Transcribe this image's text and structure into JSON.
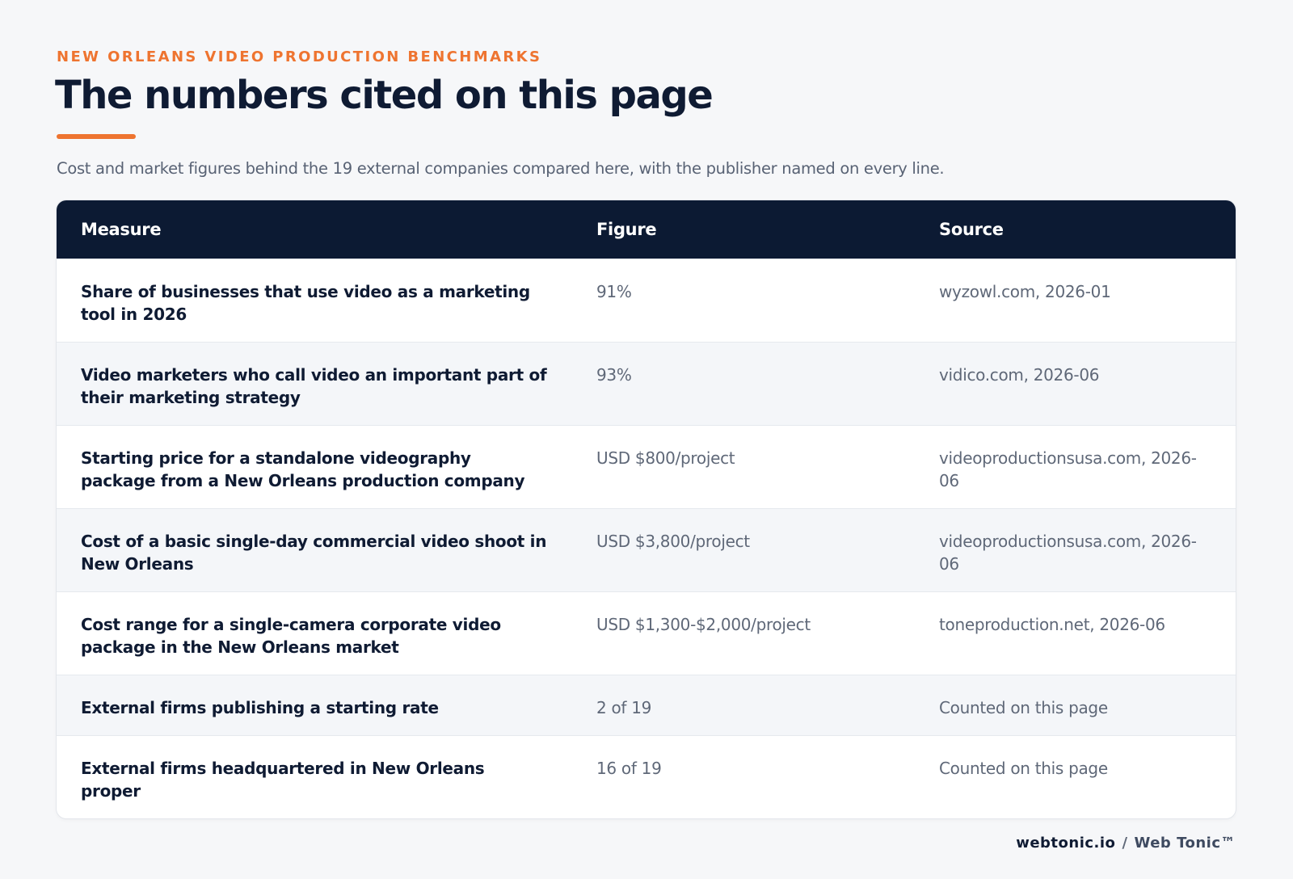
{
  "header": {
    "eyebrow": "NEW ORLEANS VIDEO PRODUCTION BENCHMARKS",
    "title": "The numbers cited on this page",
    "subtitle": "Cost and market figures behind the 19 external companies compared here, with the publisher named on every line."
  },
  "table": {
    "columns": [
      "Measure",
      "Figure",
      "Source"
    ],
    "rows": [
      [
        "Share of businesses that use video as a marketing tool in 2026",
        "91%",
        "wyzowl.com, 2026-01"
      ],
      [
        "Video marketers who call video an important part of their marketing strategy",
        "93%",
        "vidico.com, 2026-06"
      ],
      [
        "Starting price for a standalone videography package from a New Orleans production company",
        "USD $800/project",
        "videoproductionsusa.com, 2026-06"
      ],
      [
        "Cost of a basic single-day commercial video shoot in New Orleans",
        "USD $3,800/project",
        "videoproductionsusa.com, 2026-06"
      ],
      [
        "Cost range for a single-camera corporate video package in the New Orleans market",
        "USD $1,300-$2,000/project",
        "toneproduction.net, 2026-06"
      ],
      [
        "External firms publishing a starting rate",
        "2 of 19",
        "Counted on this page"
      ],
      [
        "External firms headquartered in New Orleans proper",
        "16 of 19",
        "Counted on this page"
      ]
    ]
  },
  "footer": {
    "brand": "webtonic.io",
    "separator": "/",
    "name": "Web Tonic™"
  }
}
